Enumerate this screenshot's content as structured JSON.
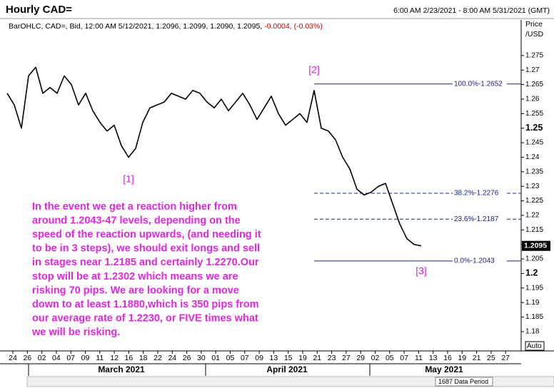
{
  "chart_data": {
    "type": "line",
    "title": "Hourly CAD=",
    "time_range": "6:00 AM 2/23/2021 - 8:00 AM 5/31/2021 (GMT)",
    "legend_text": "BarOHLC, CAD=, Bid, 12:00 AM 5/12/2021, 1.2096, 1.2099, 1.2090, 1.2095,",
    "legend_change": "-0.0004, (-0.03%)",
    "y_label": [
      "Price",
      "/USD"
    ],
    "color": "#000000",
    "values": [
      1.262,
      1.258,
      1.25,
      1.268,
      1.271,
      1.262,
      1.264,
      1.262,
      1.268,
      1.265,
      1.258,
      1.262,
      1.256,
      1.252,
      1.249,
      1.251,
      1.244,
      1.24,
      1.243,
      1.252,
      1.257,
      1.258,
      1.259,
      1.262,
      1.261,
      1.26,
      1.263,
      1.262,
      1.259,
      1.257,
      1.26,
      1.256,
      1.259,
      1.262,
      1.258,
      1.253,
      1.257,
      1.261,
      1.255,
      1.251,
      1.253,
      1.255,
      1.252,
      1.263,
      1.25,
      1.249,
      1.246,
      1.24,
      1.236,
      1.229,
      1.227,
      1.228,
      1.23,
      1.231,
      1.224,
      1.217,
      1.212,
      1.21,
      1.2095
    ],
    "ylim": [
      1.1725,
      1.2865
    ],
    "yticks": [
      1.275,
      1.27,
      1.265,
      1.26,
      1.255,
      1.25,
      1.245,
      1.24,
      1.235,
      1.23,
      1.225,
      1.22,
      1.215,
      1.21,
      1.205,
      1.2,
      1.195,
      1.19,
      1.185,
      1.18
    ],
    "last_price": 1.2095,
    "fib_levels": [
      {
        "value": 1.2652,
        "label": "100.0%-1.2652",
        "dashed": false
      },
      {
        "value": 1.2276,
        "label": "38.2%-1.2276",
        "dashed": true
      },
      {
        "value": 1.2187,
        "label": "23.6%-1.2187",
        "dashed": true
      },
      {
        "value": 1.2043,
        "label": "0.0%-1.2043",
        "dashed": false
      }
    ],
    "wave_labels": [
      "[1]",
      "[2]",
      "[3]"
    ],
    "x_labels": [
      "24",
      "26",
      "02",
      "04",
      "07",
      "09",
      "11",
      "12",
      "16",
      "18",
      "22",
      "24",
      "26",
      "30",
      "01",
      "05",
      "07",
      "09",
      "13",
      "15",
      "19",
      "21",
      "23",
      "27",
      "29",
      "02",
      "05",
      "07",
      "11",
      "13",
      "16",
      "19",
      "21",
      "25",
      "27"
    ],
    "months": [
      "March 2021",
      "April 2021",
      "May 2021"
    ],
    "annotation": [
      "In the event we get a reaction higher from",
      "around 1.2043-47 levels,  depending on the",
      "speed of the reaction upwards, (and needing it",
      "to be in 3 steps), we should exit longs and sell",
      "in stages near 1.2185 and certainly 1.2270.Our",
      "stop will be at 1.2302 which means we are",
      "risking 70 pips. We are looking for a move",
      "down to at least 1.1880,which is 350 pips from",
      "our average rate of 1.2230, or FIVE times what",
      "we will be risking."
    ],
    "scale_mode": "Auto",
    "data_period": "1687 Data Period"
  }
}
